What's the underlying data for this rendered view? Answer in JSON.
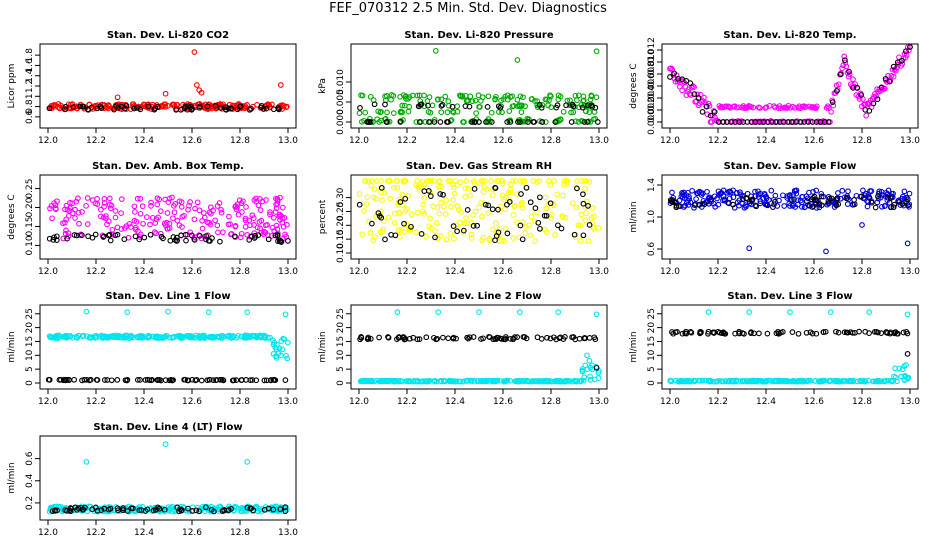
{
  "page": {
    "title": "FEF_070312  2.5 Min. Std. Dev. Diagnostics"
  },
  "chart_data": [
    {
      "id": "co2",
      "type": "scatter",
      "title": "Stan. Dev. Li-820 CO2",
      "ylabel": "Licor ppm",
      "xlim": [
        12.0,
        13.0
      ],
      "xticks": [
        12.0,
        12.2,
        12.4,
        12.6,
        12.8,
        13.0
      ],
      "ylim": [
        0.5,
        1.9
      ],
      "yticks": [
        0.6,
        0.8,
        1.0,
        1.2,
        1.4,
        1.6,
        1.8
      ],
      "series": [
        {
          "color": "#ff0000",
          "base": 0.78,
          "spread": 0.1,
          "n": 220,
          "outliers": [
            [
              12.61,
              1.86
            ],
            [
              12.62,
              1.22
            ],
            [
              12.63,
              1.12
            ],
            [
              12.64,
              1.07
            ],
            [
              12.97,
              1.22
            ],
            [
              12.29,
              0.98
            ],
            [
              12.49,
              1.05
            ]
          ]
        },
        {
          "color": "#000000",
          "base": 0.76,
          "spread": 0.08,
          "n": 60,
          "outliers": []
        }
      ]
    },
    {
      "id": "pressure",
      "type": "scatter",
      "title": "Stan. Dev. Li-820 Pressure",
      "ylabel": "kPa",
      "xlim": [
        12.0,
        13.0
      ],
      "xticks": [
        12.0,
        12.2,
        12.4,
        12.6,
        12.8,
        13.0
      ],
      "ylim": [
        0.0,
        0.018
      ],
      "yticks": [
        0.0,
        0.005,
        0.01
      ],
      "ytick_labels": [
        "0.000",
        "0.005",
        "0.010"
      ],
      "series": [
        {
          "color": "#00aa00",
          "base": 0.003,
          "spread": 0.005,
          "n": 220,
          "outliers": [
            [
              12.32,
              0.0178
            ],
            [
              12.66,
              0.0155
            ],
            [
              12.99,
              0.0177
            ]
          ]
        },
        {
          "color": "#000000",
          "base": 0.002,
          "spread": 0.004,
          "n": 60,
          "outliers": []
        }
      ]
    },
    {
      "id": "temp",
      "type": "scatter",
      "title": "Stan. Dev. Li-820 Temp.",
      "ylabel": "degrees C",
      "xlim": [
        12.0,
        13.0
      ],
      "xticks": [
        12.0,
        12.2,
        12.4,
        12.6,
        12.8,
        13.0
      ],
      "ylim": [
        0.0,
        0.012
      ],
      "yticks": [
        0.0,
        0.002,
        0.004,
        0.006,
        0.008,
        0.01,
        0.012
      ],
      "ytick_labels": [
        "0.000",
        "0.002",
        "0.004",
        "0.006",
        "0.008",
        "0.010",
        "0.012"
      ],
      "series": [
        {
          "color": "#ff00ff",
          "n": 220,
          "outliers": []
        },
        {
          "color": "#000000",
          "n": 60,
          "outliers": []
        }
      ]
    },
    {
      "id": "ambbox",
      "type": "scatter",
      "title": "Stan. Dev. Amb. Box Temp.",
      "ylabel": "degrees C",
      "xlim": [
        12.0,
        13.0
      ],
      "xticks": [
        12.0,
        12.2,
        12.4,
        12.6,
        12.8,
        13.0
      ],
      "ylim": [
        0.08,
        0.27
      ],
      "yticks": [
        0.1,
        0.15,
        0.2,
        0.25
      ],
      "ytick_labels": [
        "0.10",
        "0.15",
        "0.20",
        "0.25"
      ],
      "series": [
        {
          "color": "#ff00ff",
          "base": 0.15,
          "spread": 0.11,
          "n": 240,
          "outliers": []
        },
        {
          "color": "#000000",
          "base": 0.115,
          "spread": 0.02,
          "n": 60,
          "outliers": []
        }
      ]
    },
    {
      "id": "rh",
      "type": "scatter",
      "title": "Stan. Dev. Gas Stream RH",
      "ylabel": "percent",
      "xlim": [
        12.0,
        13.0
      ],
      "xticks": [
        12.0,
        12.2,
        12.4,
        12.6,
        12.8,
        13.0
      ],
      "ylim": [
        0.1,
        0.36
      ],
      "yticks": [
        0.1,
        0.15,
        0.2,
        0.25,
        0.3
      ],
      "ytick_labels": [
        "0.10",
        "0.15",
        "0.20",
        "0.25",
        "0.30"
      ],
      "series": [
        {
          "color": "#ffff00",
          "base": 0.22,
          "spread": 0.26,
          "n": 260,
          "outliers": []
        },
        {
          "color": "#000000",
          "base": 0.2,
          "spread": 0.2,
          "n": 60,
          "outliers": []
        }
      ]
    },
    {
      "id": "sampleflow",
      "type": "scatter",
      "title": "Stan. Dev. Sample Flow",
      "ylabel": "ml/min",
      "xlim": [
        12.0,
        13.0
      ],
      "xticks": [
        12.0,
        12.2,
        12.4,
        12.6,
        12.8,
        13.0
      ],
      "ylim": [
        0.55,
        1.45
      ],
      "yticks": [
        0.6,
        1.0,
        1.4
      ],
      "ytick_labels": [
        "0.6",
        "1.0",
        "1.4"
      ],
      "series": [
        {
          "color": "#0000dd",
          "base": 1.18,
          "spread": 0.22,
          "n": 240,
          "outliers": [
            [
              12.33,
              0.61
            ],
            [
              12.65,
              0.57
            ],
            [
              12.99,
              0.67
            ],
            [
              12.8,
              0.9
            ]
          ]
        },
        {
          "color": "#000000",
          "base": 1.16,
          "spread": 0.15,
          "n": 60,
          "outliers": []
        }
      ]
    },
    {
      "id": "line1",
      "type": "scatter",
      "title": "Stan. Dev. Line 1 Flow",
      "ylabel": "ml/min",
      "xlim": [
        12.0,
        13.0
      ],
      "xticks": [
        12.0,
        12.2,
        12.4,
        12.6,
        12.8,
        13.0
      ],
      "ylim": [
        0,
        26
      ],
      "yticks": [
        0,
        5,
        10,
        15,
        20,
        25
      ],
      "series": [
        {
          "color": "#00e5ee",
          "base": 16.5,
          "spread": 1.0,
          "n": 240,
          "tail": true,
          "outliers": [
            [
              12.16,
              25.8
            ],
            [
              12.33,
              25.6
            ],
            [
              12.5,
              25.8
            ],
            [
              12.67,
              25.6
            ],
            [
              12.83,
              25.6
            ],
            [
              12.99,
              24.8
            ]
          ]
        },
        {
          "color": "#000000",
          "base": 1.0,
          "spread": 0.3,
          "n": 80,
          "outliers": []
        }
      ]
    },
    {
      "id": "line2",
      "type": "scatter",
      "title": "Stan. Dev. Line 2 Flow",
      "ylabel": "ml/min",
      "xlim": [
        12.0,
        13.0
      ],
      "xticks": [
        12.0,
        12.2,
        12.4,
        12.6,
        12.8,
        13.0
      ],
      "ylim": [
        0,
        26
      ],
      "yticks": [
        0,
        5,
        10,
        15,
        20,
        25
      ],
      "series": [
        {
          "color": "#00e5ee",
          "base": 0.6,
          "spread": 0.4,
          "n": 240,
          "tail": true,
          "outliers": [
            [
              12.16,
              25.6
            ],
            [
              12.33,
              25.6
            ],
            [
              12.5,
              25.6
            ],
            [
              12.67,
              25.6
            ],
            [
              12.83,
              25.6
            ],
            [
              12.99,
              24.8
            ],
            [
              12.95,
              10.0
            ],
            [
              12.96,
              8.0
            ]
          ]
        },
        {
          "color": "#000000",
          "base": 16.0,
          "spread": 1.0,
          "n": 80,
          "outliers": [
            [
              12.99,
              5.5
            ]
          ]
        }
      ]
    },
    {
      "id": "line3",
      "type": "scatter",
      "title": "Stan. Dev. Line 3 Flow",
      "ylabel": "ml/min",
      "xlim": [
        12.0,
        13.0
      ],
      "xticks": [
        12.0,
        12.2,
        12.4,
        12.6,
        12.8,
        13.0
      ],
      "ylim": [
        0,
        26
      ],
      "yticks": [
        0,
        5,
        10,
        15,
        20,
        25
      ],
      "series": [
        {
          "color": "#00e5ee",
          "base": 0.6,
          "spread": 0.4,
          "n": 240,
          "tail": true,
          "outliers": [
            [
              12.16,
              25.6
            ],
            [
              12.33,
              25.6
            ],
            [
              12.5,
              25.6
            ],
            [
              12.67,
              25.6
            ],
            [
              12.83,
              25.6
            ],
            [
              12.99,
              24.8
            ],
            [
              12.97,
              5.0
            ]
          ]
        },
        {
          "color": "#000000",
          "base": 18.0,
          "spread": 0.8,
          "n": 80,
          "outliers": [
            [
              12.99,
              10.5
            ]
          ]
        }
      ]
    },
    {
      "id": "line4",
      "type": "scatter",
      "title": "Stan. Dev. Line 4 (LT) Flow",
      "ylabel": "ml/min",
      "xlim": [
        12.0,
        13.0
      ],
      "xticks": [
        12.0,
        12.2,
        12.4,
        12.6,
        12.8,
        13.0
      ],
      "ylim": [
        0.1,
        0.75
      ],
      "yticks": [
        0.2,
        0.4,
        0.6
      ],
      "series": [
        {
          "color": "#00e5ee",
          "base": 0.135,
          "spread": 0.05,
          "n": 240,
          "outliers": [
            [
              12.16,
              0.57
            ],
            [
              12.49,
              0.73
            ],
            [
              12.83,
              0.57
            ]
          ]
        },
        {
          "color": "#000000",
          "base": 0.135,
          "spread": 0.04,
          "n": 70,
          "outliers": []
        }
      ]
    }
  ]
}
